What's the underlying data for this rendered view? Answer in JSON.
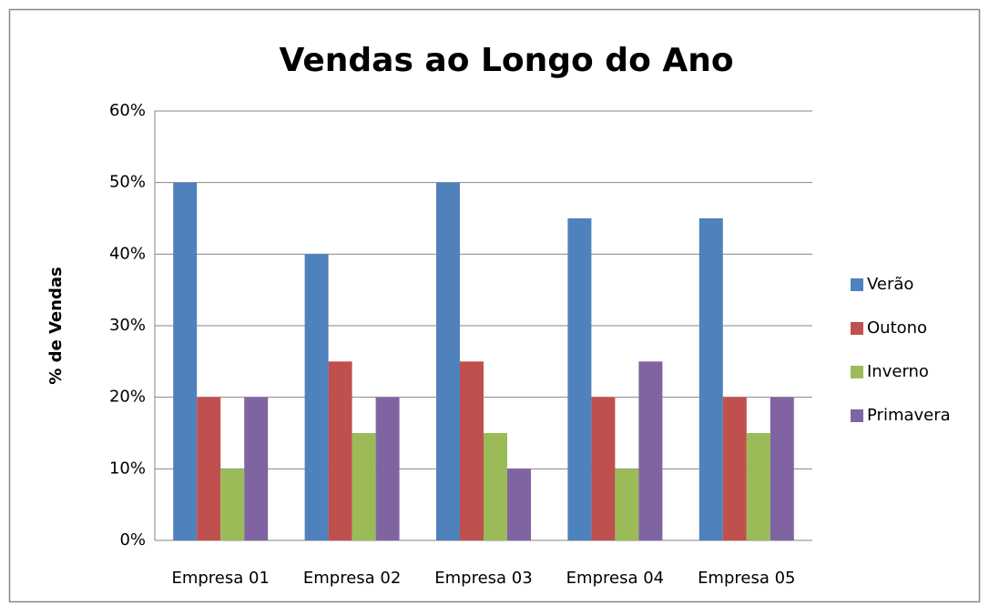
{
  "chart_data": {
    "type": "bar",
    "title": "Vendas ao Longo do Ano",
    "y_label": "% de Vendas",
    "categories": [
      "Empresa 01",
      "Empresa 02",
      "Empresa 03",
      "Empresa 04",
      "Empresa 05"
    ],
    "series": [
      {
        "name": "Verão",
        "color": "#4f81bd",
        "values": [
          50,
          40,
          50,
          45,
          45
        ]
      },
      {
        "name": "Outono",
        "color": "#c0504d",
        "values": [
          20,
          25,
          25,
          20,
          20
        ]
      },
      {
        "name": "Inverno",
        "color": "#9bbb59",
        "values": [
          10,
          15,
          15,
          10,
          15
        ]
      },
      {
        "name": "Primavera",
        "color": "#8064a2",
        "values": [
          20,
          20,
          10,
          25,
          20
        ]
      }
    ],
    "ylim": [
      0,
      60
    ],
    "yticks": [
      {
        "value": 0,
        "label": "0%"
      },
      {
        "value": 10,
        "label": "10%"
      },
      {
        "value": 20,
        "label": "20%"
      },
      {
        "value": 30,
        "label": "30%"
      },
      {
        "value": 40,
        "label": "40%"
      },
      {
        "value": 50,
        "label": "50%"
      },
      {
        "value": 60,
        "label": "60%"
      }
    ],
    "grid": true,
    "legend": "right"
  }
}
